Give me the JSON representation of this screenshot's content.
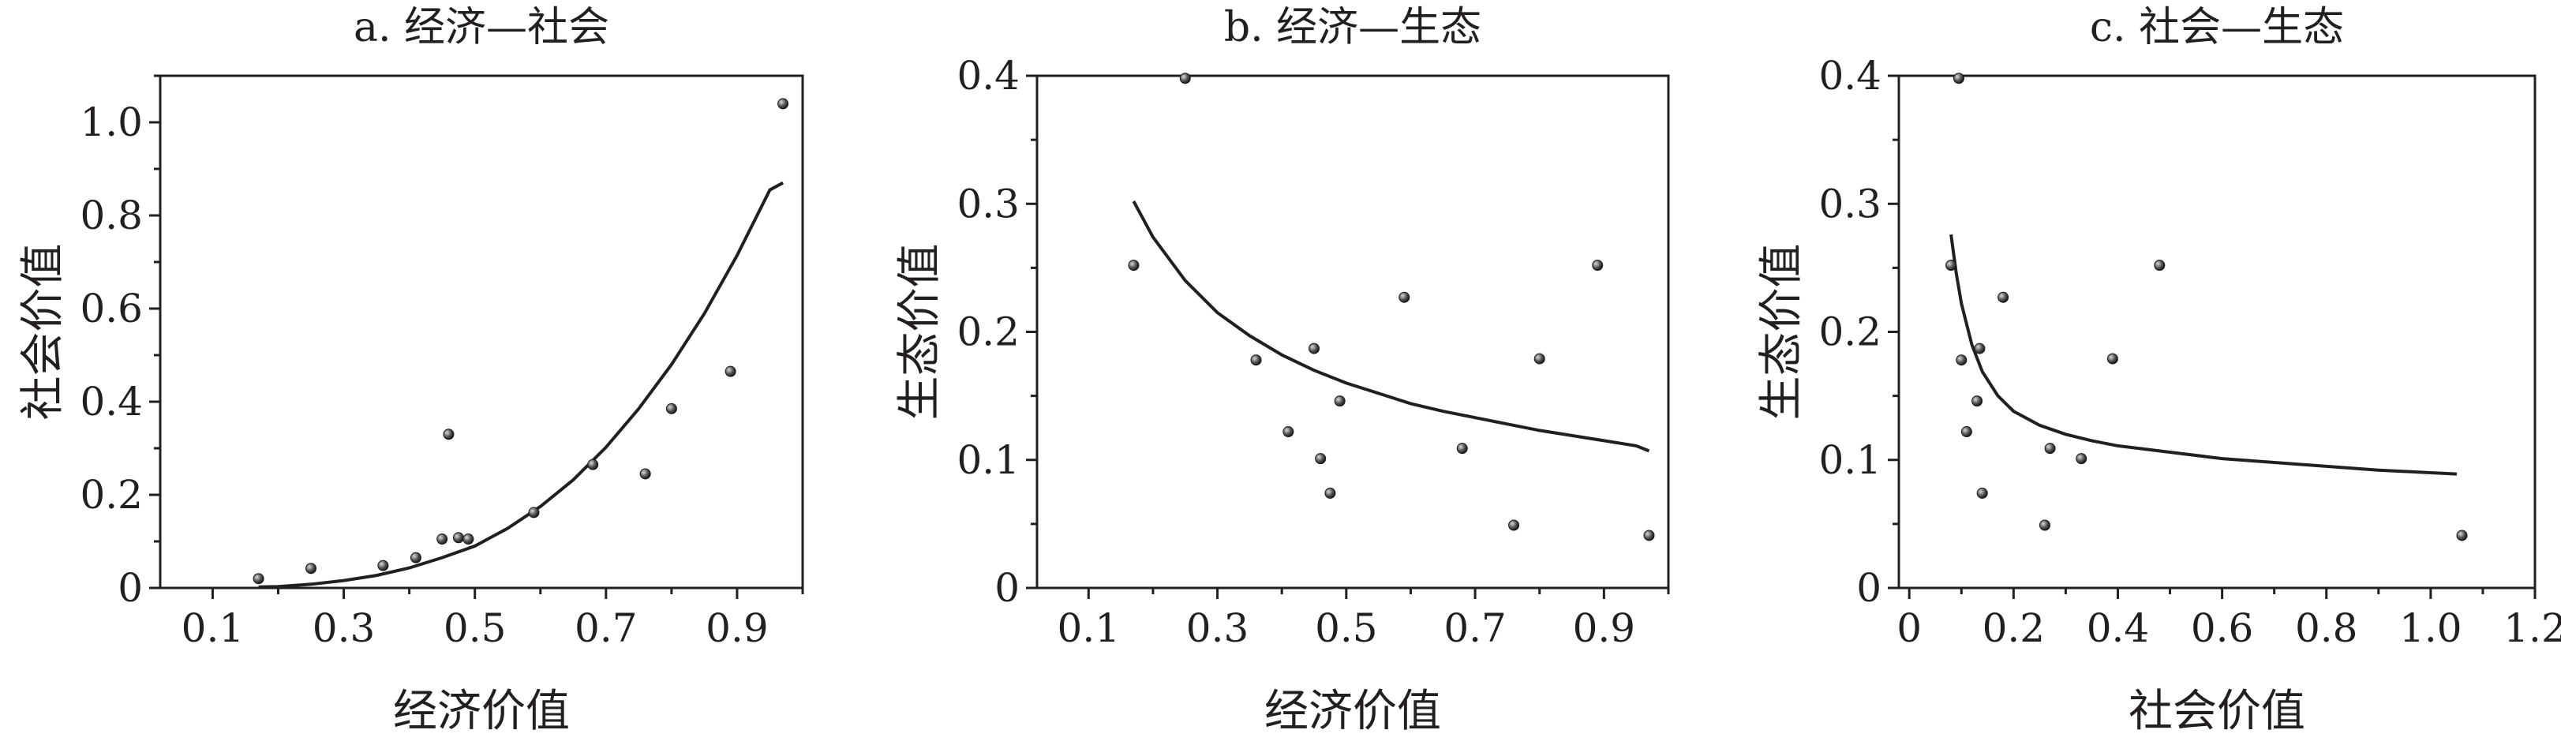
{
  "chart_data": [
    {
      "type": "scatter",
      "title": "a. 经济—社会",
      "xlabel": "经济价值",
      "ylabel": "社会价值",
      "xlim": [
        0.02,
        1.0
      ],
      "ylim": [
        0,
        1.1
      ],
      "xticks": [
        0.1,
        0.3,
        0.5,
        0.7,
        0.9
      ],
      "xtick_labels": [
        "0.1",
        "0.3",
        "0.5",
        "0.7",
        "0.9"
      ],
      "yticks": [
        0,
        0.2,
        0.4,
        0.6,
        0.8,
        1.0
      ],
      "ytick_labels": [
        "0",
        "0.2",
        "0.4",
        "0.6",
        "0.8",
        "1.0"
      ],
      "points": [
        {
          "x": 0.17,
          "y": 0.02
        },
        {
          "x": 0.25,
          "y": 0.042
        },
        {
          "x": 0.36,
          "y": 0.048
        },
        {
          "x": 0.41,
          "y": 0.065
        },
        {
          "x": 0.45,
          "y": 0.105
        },
        {
          "x": 0.46,
          "y": 0.33
        },
        {
          "x": 0.475,
          "y": 0.108
        },
        {
          "x": 0.49,
          "y": 0.105
        },
        {
          "x": 0.59,
          "y": 0.162
        },
        {
          "x": 0.68,
          "y": 0.265
        },
        {
          "x": 0.76,
          "y": 0.245
        },
        {
          "x": 0.8,
          "y": 0.385
        },
        {
          "x": 0.89,
          "y": 0.465
        },
        {
          "x": 0.97,
          "y": 1.04
        }
      ],
      "fit_curve": {
        "x": [
          0.17,
          0.2,
          0.25,
          0.3,
          0.35,
          0.4,
          0.45,
          0.5,
          0.55,
          0.6,
          0.65,
          0.7,
          0.75,
          0.8,
          0.85,
          0.9,
          0.95,
          0.97
        ],
        "y": [
          0.002,
          0.003,
          0.008,
          0.016,
          0.027,
          0.043,
          0.065,
          0.09,
          0.128,
          0.175,
          0.232,
          0.302,
          0.385,
          0.48,
          0.589,
          0.714,
          0.855,
          0.87
        ]
      }
    },
    {
      "type": "scatter",
      "title": "b. 经济—生态",
      "xlabel": "经济价值",
      "ylabel": "生态价值",
      "xlim": [
        0.02,
        1.0
      ],
      "ylim": [
        0,
        0.4
      ],
      "xticks": [
        0.1,
        0.3,
        0.5,
        0.7,
        0.9
      ],
      "xtick_labels": [
        "0.1",
        "0.3",
        "0.5",
        "0.7",
        "0.9"
      ],
      "yticks": [
        0,
        0.1,
        0.2,
        0.3,
        0.4
      ],
      "ytick_labels": [
        "0",
        "0.1",
        "0.2",
        "0.3",
        "0.4"
      ],
      "points": [
        {
          "x": 0.17,
          "y": 0.252
        },
        {
          "x": 0.25,
          "y": 0.398
        },
        {
          "x": 0.36,
          "y": 0.178
        },
        {
          "x": 0.41,
          "y": 0.122
        },
        {
          "x": 0.45,
          "y": 0.187
        },
        {
          "x": 0.46,
          "y": 0.101
        },
        {
          "x": 0.475,
          "y": 0.074
        },
        {
          "x": 0.49,
          "y": 0.146
        },
        {
          "x": 0.59,
          "y": 0.227
        },
        {
          "x": 0.68,
          "y": 0.109
        },
        {
          "x": 0.76,
          "y": 0.049
        },
        {
          "x": 0.8,
          "y": 0.179
        },
        {
          "x": 0.89,
          "y": 0.252
        },
        {
          "x": 0.97,
          "y": 0.041
        }
      ],
      "fit_curve": {
        "x": [
          0.17,
          0.2,
          0.25,
          0.3,
          0.35,
          0.4,
          0.45,
          0.5,
          0.55,
          0.6,
          0.65,
          0.7,
          0.75,
          0.8,
          0.85,
          0.9,
          0.95,
          0.97
        ],
        "y": [
          0.302,
          0.274,
          0.24,
          0.215,
          0.197,
          0.182,
          0.17,
          0.16,
          0.152,
          0.144,
          0.138,
          0.133,
          0.128,
          0.123,
          0.119,
          0.115,
          0.111,
          0.107
        ]
      }
    },
    {
      "type": "scatter",
      "title": "c. 社会—生态",
      "xlabel": "社会价值",
      "ylabel": "生态价值",
      "xlim": [
        -0.02,
        1.2
      ],
      "ylim": [
        0,
        0.4
      ],
      "xticks": [
        0,
        0.2,
        0.4,
        0.6,
        0.8,
        1.0,
        1.2
      ],
      "xtick_labels": [
        "0",
        "0.2",
        "0.4",
        "0.6",
        "0.8",
        "1.0",
        "1.2"
      ],
      "yticks": [
        0,
        0.1,
        0.2,
        0.3,
        0.4
      ],
      "ytick_labels": [
        "0",
        "0.1",
        "0.2",
        "0.3",
        "0.4"
      ],
      "points": [
        {
          "x": 0.08,
          "y": 0.252
        },
        {
          "x": 0.095,
          "y": 0.398
        },
        {
          "x": 0.1,
          "y": 0.178
        },
        {
          "x": 0.11,
          "y": 0.122
        },
        {
          "x": 0.13,
          "y": 0.146
        },
        {
          "x": 0.135,
          "y": 0.187
        },
        {
          "x": 0.14,
          "y": 0.074
        },
        {
          "x": 0.18,
          "y": 0.227
        },
        {
          "x": 0.26,
          "y": 0.049
        },
        {
          "x": 0.27,
          "y": 0.109
        },
        {
          "x": 0.33,
          "y": 0.101
        },
        {
          "x": 0.39,
          "y": 0.179
        },
        {
          "x": 0.48,
          "y": 0.252
        },
        {
          "x": 1.06,
          "y": 0.041
        }
      ],
      "fit_curve": {
        "x": [
          0.08,
          0.09,
          0.1,
          0.12,
          0.14,
          0.17,
          0.2,
          0.25,
          0.3,
          0.35,
          0.4,
          0.5,
          0.6,
          0.7,
          0.8,
          0.9,
          1.0,
          1.05
        ],
        "y": [
          0.276,
          0.246,
          0.222,
          0.19,
          0.169,
          0.15,
          0.138,
          0.127,
          0.12,
          0.115,
          0.111,
          0.106,
          0.101,
          0.098,
          0.095,
          0.092,
          0.09,
          0.089
        ]
      }
    }
  ]
}
